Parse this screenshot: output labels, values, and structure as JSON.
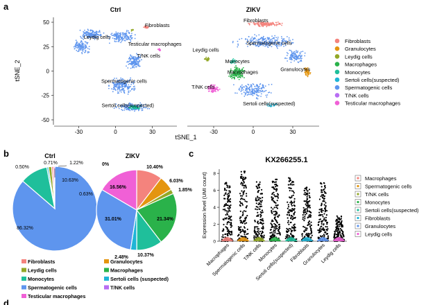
{
  "panel_labels": {
    "a": "a",
    "b": "b",
    "c": "c",
    "d": "d"
  },
  "colors": {
    "Fibroblasts": "#f4837d",
    "Granulocytes": "#e4950f",
    "Leydig cells": "#93a827",
    "Macrophages": "#2ab24a",
    "Monocytes": "#1fbf9b",
    "Sertoli cells(suspected)": "#1fb5d6",
    "Spermatogenic cells": "#5e95ee",
    "T/NK cells": "#b86df3",
    "Testicular macrophages": "#f060d6"
  },
  "chart_data": [
    {
      "type": "scatter",
      "panel": "a",
      "facets": [
        "Ctrl",
        "ZIKV"
      ],
      "xlabel": "tSNE_1",
      "ylabel": "tSNE_2",
      "x_ticks": [
        -30,
        0,
        30
      ],
      "x_ticks_right": [
        -30,
        0,
        30
      ],
      "y_ticks": [
        50,
        25,
        0,
        -25,
        -50
      ],
      "xlim": [
        -50,
        50
      ],
      "ylim": [
        -55,
        55
      ],
      "legend_position": "right",
      "legend": [
        "Fibroblasts",
        "Granulocytes",
        "Leydig cells",
        "Macrophages",
        "Monocytes",
        "Sertoli cells(suspected)",
        "Spermatogenic cells",
        "T/NK cells",
        "Testicular macrophages"
      ],
      "annotations": {
        "Ctrl": [
          {
            "text": "Fibroblasts",
            "x": 34,
            "y": 45
          },
          {
            "text": "Leydig cells",
            "x": -15,
            "y": 33
          },
          {
            "text": "Testicular macrophages",
            "x": 32,
            "y": 26
          },
          {
            "text": "T/NK cells",
            "x": 27,
            "y": 14
          },
          {
            "text": "Spermatogenic cells",
            "x": 7,
            "y": -12
          },
          {
            "text": "Sertoli cells(suspected)",
            "x": 10,
            "y": -37
          }
        ],
        "ZIKV": [
          {
            "text": "Fibroblasts",
            "x": 2,
            "y": 50
          },
          {
            "text": "Spermatogenic cells",
            "x": 12,
            "y": 27
          },
          {
            "text": "Leydig cells",
            "x": -36,
            "y": 20
          },
          {
            "text": "Monocytes",
            "x": -12,
            "y": 8
          },
          {
            "text": "Macrophages",
            "x": -8,
            "y": -3
          },
          {
            "text": "Granulocytes",
            "x": 32,
            "y": 0
          },
          {
            "text": "T/NK cells",
            "x": -38,
            "y": -18
          },
          {
            "text": "Sertoli cells(suspected)",
            "x": 12,
            "y": -35
          }
        ]
      }
    },
    {
      "type": "pie",
      "panel": "b",
      "title": "Ctrl",
      "slices": [
        {
          "label": "Spermatogenic cells",
          "value": 86.32,
          "text": "86.32%"
        },
        {
          "label": "Monocytes",
          "value": 10.63,
          "text": "10.63%"
        },
        {
          "label": "Sertoli cells (suspected)",
          "value": 0.63,
          "text": "0.63%"
        },
        {
          "label": "Leydig cells",
          "value": 1.22,
          "text": "1.22%"
        },
        {
          "label": "Fibroblasts",
          "value": 0.71,
          "text": "0.71%"
        },
        {
          "label": "Testicular macrophages",
          "value": 0.5,
          "text": "0.50%"
        }
      ]
    },
    {
      "type": "pie",
      "panel": "b",
      "title": "ZIKV",
      "slices": [
        {
          "label": "Fibroblasts",
          "value": 10.4,
          "text": "10.40%"
        },
        {
          "label": "Granulocytes",
          "value": 6.03,
          "text": "6.03%"
        },
        {
          "label": "Leydig cells",
          "value": 1.85,
          "text": "1.85%"
        },
        {
          "label": "Macrophages",
          "value": 21.34,
          "text": "21.34%"
        },
        {
          "label": "Monocytes",
          "value": 10.37,
          "text": "10.37%"
        },
        {
          "label": "Sertoli cells (suspected)",
          "value": 2.48,
          "text": "2.48%"
        },
        {
          "label": "Spermatogenic cells",
          "value": 31.01,
          "text": "31.01%"
        },
        {
          "label": "Testicular macrophages",
          "value": 16.56,
          "text": "16.56%"
        },
        {
          "label": "T/NK cells",
          "value": 0,
          "text": "0%"
        }
      ],
      "legend": [
        {
          "label": "Fibroblasts",
          "color": "#f4837d"
        },
        {
          "label": "Granulocytes",
          "color": "#e4950f"
        },
        {
          "label": "Leydig cells",
          "color": "#93a827"
        },
        {
          "label": "Macrophages",
          "color": "#2ab24a"
        },
        {
          "label": "Monocytes",
          "color": "#1fbf9b"
        },
        {
          "label": "Sertoli cells (suspected)",
          "color": "#1fb5d6"
        },
        {
          "label": "Spermatogenic cells",
          "color": "#5e95ee"
        },
        {
          "label": "T/NK cells",
          "color": "#b86df3"
        },
        {
          "label": "Testicular macrophages",
          "color": "#f060d6"
        }
      ]
    },
    {
      "type": "violin",
      "panel": "c",
      "title": "KX266255.1",
      "ylabel": "Expression level (UMI count)",
      "ylim": [
        0,
        8.5
      ],
      "y_ticks": [
        0,
        2,
        4,
        6,
        8
      ],
      "categories": [
        "Macrophages",
        "Spermatogenic cells",
        "T/NK cells",
        "Monocytes",
        "Sertoli cells(suspected)",
        "Fibroblasts",
        "Granulocytes",
        "Leydig cells"
      ],
      "category_colors": [
        "#f4837d",
        "#e4950f",
        "#93a827",
        "#2ab24a",
        "#1fbf9b",
        "#1fb5d6",
        "#5e95ee",
        "#f060d6"
      ],
      "max_values": [
        7.0,
        8.3,
        7.2,
        7.4,
        7.5,
        6.5,
        6.9,
        3.0
      ],
      "legend": [
        "Macrophages",
        "Spermatogenic cells",
        "T/NK cells",
        "Monocytes",
        "Sertoli cells(suspected)",
        "Fibroblasts",
        "Granulocytes",
        "Leydig cells"
      ]
    }
  ]
}
